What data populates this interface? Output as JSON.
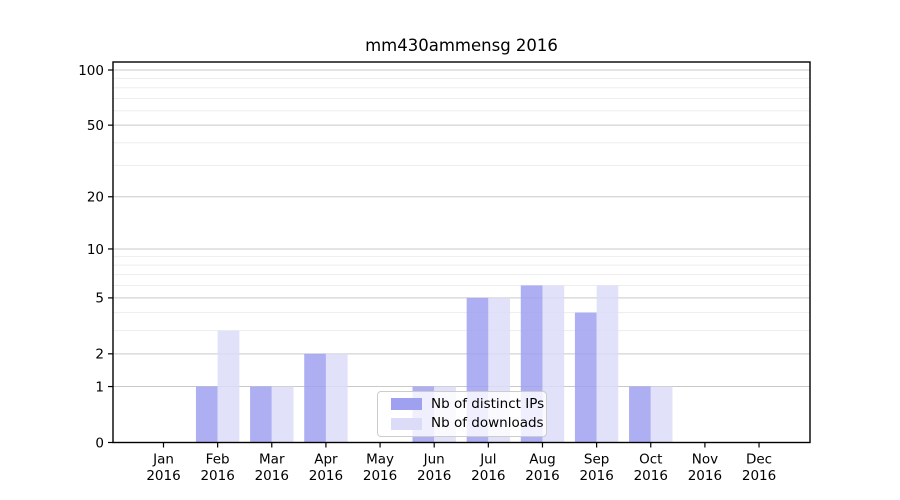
{
  "chart_data": {
    "type": "bar",
    "title": "mm430ammensg 2016",
    "categories": [
      "Jan",
      "Feb",
      "Mar",
      "Apr",
      "May",
      "Jun",
      "Jul",
      "Aug",
      "Sep",
      "Oct",
      "Nov",
      "Dec"
    ],
    "year": "2016",
    "series": [
      {
        "name": "Nb of distinct IPs",
        "color": "#a0a0f0",
        "values": [
          0,
          1,
          1,
          2,
          0,
          1,
          5,
          6,
          4,
          1,
          0,
          0
        ]
      },
      {
        "name": "Nb of downloads",
        "color": "#dcdcf8",
        "values": [
          0,
          3,
          1,
          2,
          0,
          1,
          5,
          6,
          6,
          1,
          0,
          0
        ]
      }
    ],
    "yscale": "log1p",
    "ylim": [
      0,
      110
    ],
    "ytick_values": [
      0,
      1,
      2,
      5,
      10,
      20,
      50,
      100
    ],
    "ytick_labels": [
      "0",
      "1",
      "2",
      "5",
      "10",
      "20",
      "50",
      "100"
    ],
    "minor_grid_values": [
      3,
      4,
      6,
      7,
      8,
      9,
      30,
      40,
      60,
      70,
      80,
      90
    ],
    "grid": true,
    "legend_position": "lower-center",
    "xlabel": "",
    "ylabel": ""
  }
}
